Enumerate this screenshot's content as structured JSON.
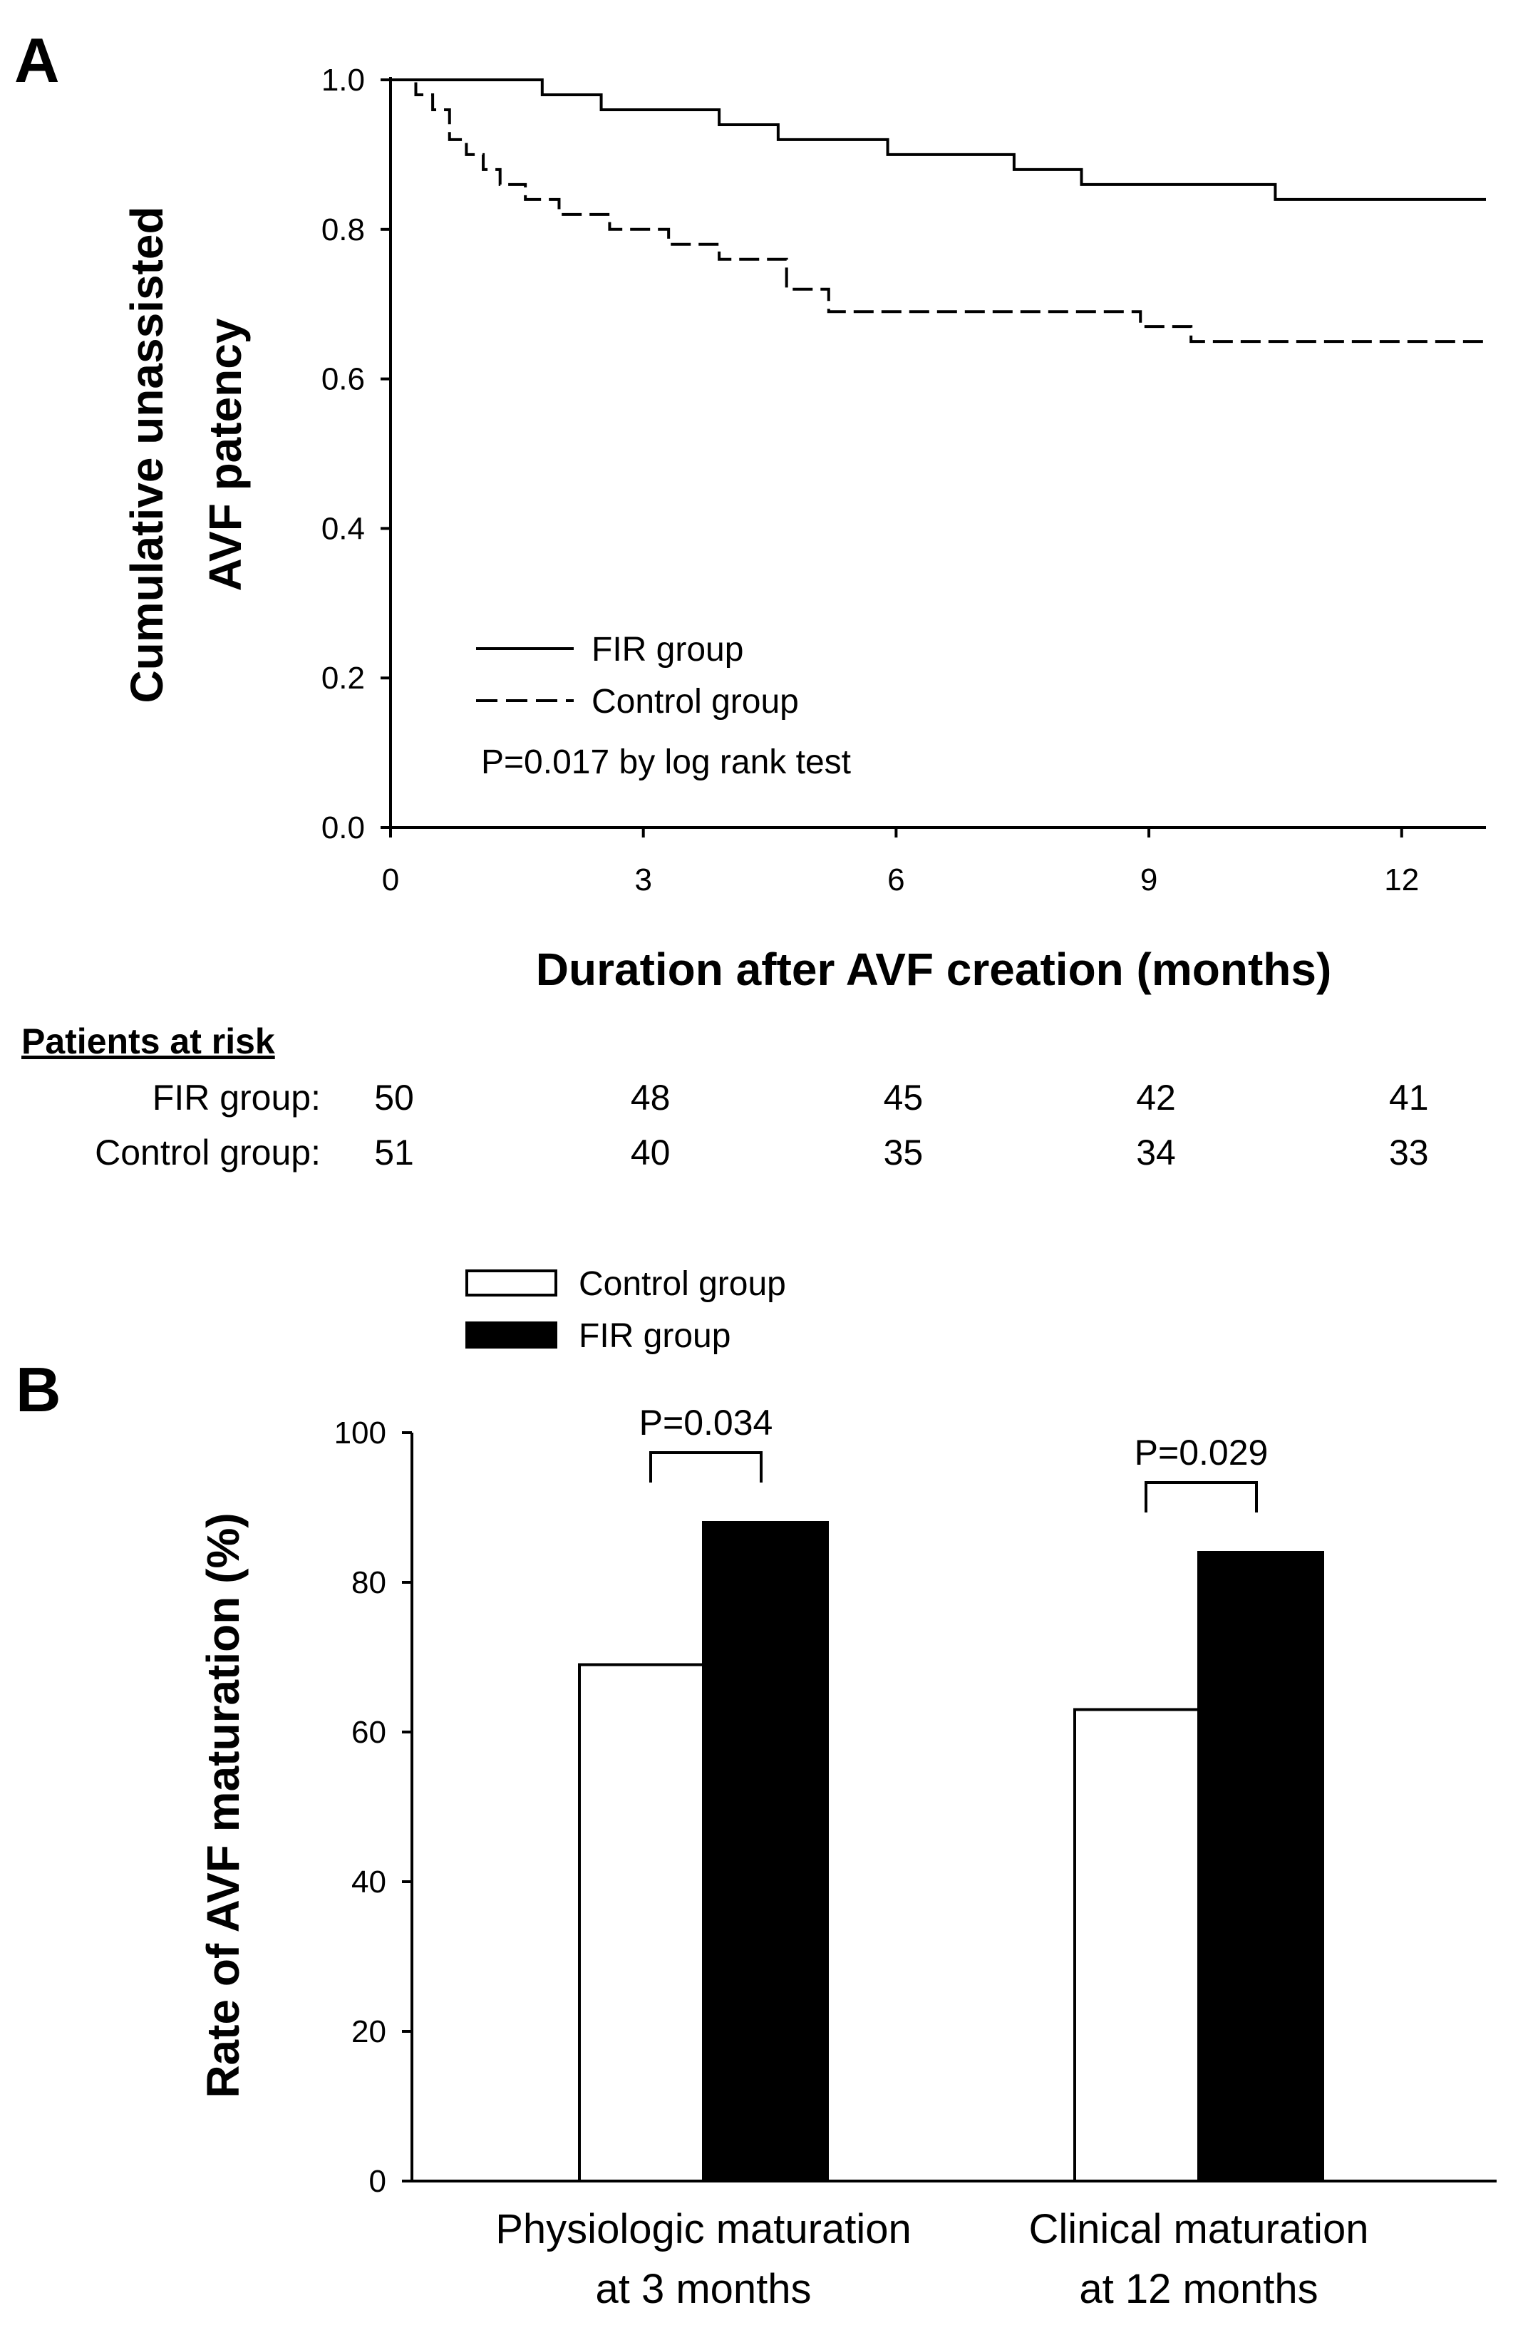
{
  "chart_data": [
    {
      "panel": "A",
      "type": "line",
      "ylabel_lines": [
        "Cumulative unassisted",
        "AVF patency"
      ],
      "xlabel": "Duration after AVF creation (months)",
      "xlim": [
        0,
        13
      ],
      "ylim": [
        0.0,
        1.0
      ],
      "xticks": [
        0,
        3,
        6,
        9,
        12
      ],
      "yticks": [
        0.0,
        0.2,
        0.4,
        0.6,
        0.8,
        1.0
      ],
      "xtick_labels": [
        "0",
        "3",
        "6",
        "9",
        "12"
      ],
      "ytick_labels": [
        "0.0",
        "0.2",
        "0.4",
        "0.6",
        "0.8",
        "1.0"
      ],
      "grid": false,
      "series": [
        {
          "name": "FIR group",
          "style": "solid",
          "x": [
            0,
            1.8,
            2.5,
            3.9,
            4.6,
            5.9,
            7.4,
            8.2,
            10.5,
            13
          ],
          "y": [
            1.0,
            0.98,
            0.96,
            0.94,
            0.92,
            0.9,
            0.88,
            0.86,
            0.84,
            0.84
          ]
        },
        {
          "name": "Control group",
          "style": "dashed",
          "x": [
            0,
            0.3,
            0.5,
            0.7,
            0.9,
            1.1,
            1.3,
            1.6,
            2.0,
            2.6,
            3.3,
            3.9,
            4.7,
            5.2,
            8.9,
            9.5,
            13
          ],
          "y": [
            1.0,
            0.98,
            0.96,
            0.92,
            0.9,
            0.88,
            0.86,
            0.84,
            0.82,
            0.8,
            0.78,
            0.76,
            0.72,
            0.69,
            0.67,
            0.65,
            0.65
          ]
        }
      ],
      "legend": {
        "entries": [
          "FIR group",
          "Control group"
        ],
        "note": "P=0.017 by log rank test",
        "position": "bottom-left"
      },
      "risk_table": {
        "title": "Patients at risk",
        "times": [
          0,
          3,
          6,
          9,
          12
        ],
        "rows": [
          {
            "label": "FIR group:",
            "values": [
              "50",
              "48",
              "45",
              "42",
              "41"
            ]
          },
          {
            "label": "Control group:",
            "values": [
              "51",
              "40",
              "35",
              "34",
              "33"
            ]
          }
        ]
      }
    },
    {
      "panel": "B",
      "type": "bar",
      "ylabel": "Rate of AVF maturation (%)",
      "ylim": [
        0,
        100
      ],
      "yticks": [
        0,
        20,
        40,
        60,
        80,
        100
      ],
      "ytick_labels": [
        "0",
        "20",
        "40",
        "60",
        "80",
        "100"
      ],
      "categories": [
        [
          "Physiologic maturation",
          "at 3 months"
        ],
        [
          "Clinical maturation",
          "at 12 months"
        ]
      ],
      "series": [
        {
          "name": "Control group",
          "color": "#ffffff",
          "values": [
            69,
            63
          ]
        },
        {
          "name": "FIR group",
          "color": "#000000",
          "values": [
            88,
            84
          ]
        }
      ],
      "significance": [
        "P=0.034",
        "P=0.029"
      ],
      "legend": {
        "entries": [
          "Control group",
          "FIR group"
        ],
        "position": "top-left"
      }
    }
  ]
}
